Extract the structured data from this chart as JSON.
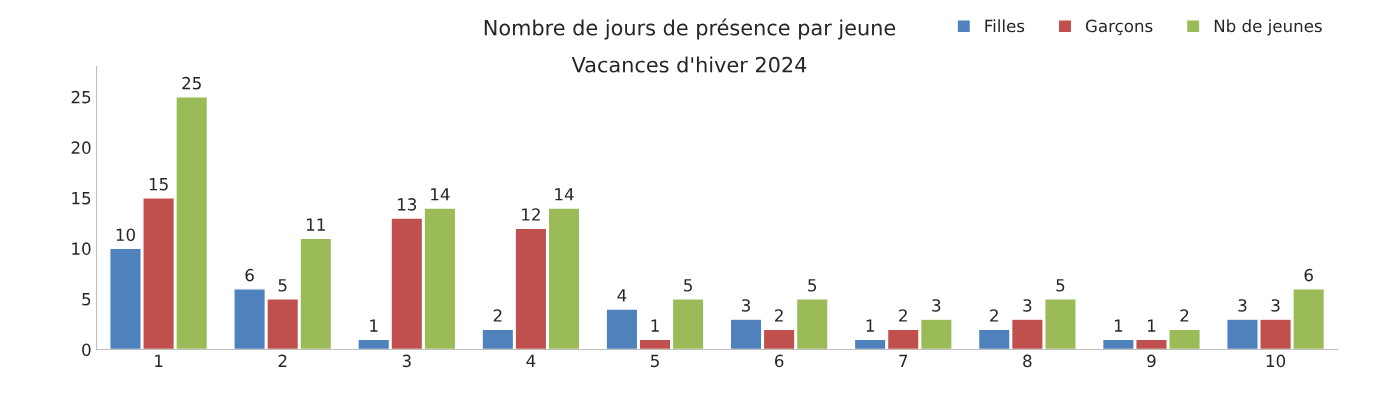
{
  "chart_data": {
    "type": "bar",
    "title": "Nombre de jours de présence par jeune",
    "subtitle": "Vacances d'hiver 2024",
    "categories": [
      "1",
      "2",
      "3",
      "4",
      "5",
      "6",
      "7",
      "8",
      "9",
      "10"
    ],
    "series": [
      {
        "name": "Filles",
        "color": "#4f81bd",
        "values": [
          10,
          6,
          1,
          2,
          4,
          3,
          1,
          2,
          1,
          3
        ]
      },
      {
        "name": "Garçons",
        "color": "#c0504d",
        "values": [
          15,
          5,
          13,
          12,
          1,
          2,
          2,
          3,
          1,
          3
        ]
      },
      {
        "name": "Nb de jeunes",
        "color": "#9bbb59",
        "values": [
          25,
          11,
          14,
          14,
          5,
          5,
          3,
          5,
          2,
          6
        ]
      }
    ],
    "ylim": [
      0,
      28
    ],
    "yticks": [
      0,
      5,
      10,
      15,
      20,
      25
    ],
    "grid": false,
    "legend": "top right",
    "data_labels": true
  }
}
